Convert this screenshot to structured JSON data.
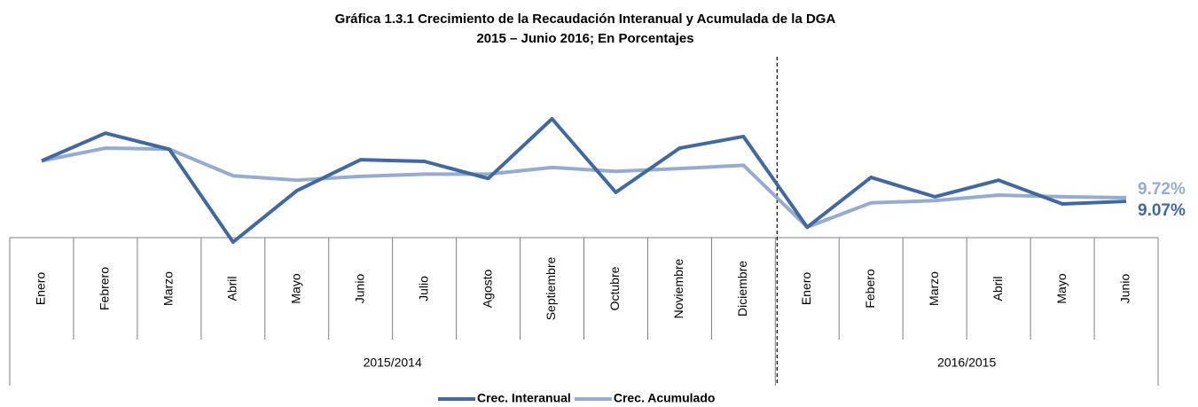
{
  "chart_data": {
    "type": "line",
    "title": "Gráfica 1.3.1 Crecimiento de la Recaudación Interanual y Acumulada de la DGA",
    "subtitle": "2015 – Junio 2016; En Porcentajes",
    "category_groups": [
      {
        "label": "2015/2014",
        "categories": [
          "Enero",
          "Febrero",
          "Marzo",
          "Abril",
          "Mayo",
          "Junio",
          "Julio",
          "Agosto",
          "Septiembre",
          "Octubre",
          "Noviembre",
          "Diciembre"
        ]
      },
      {
        "label": "2016/2015",
        "categories": [
          "Enero",
          "Febero",
          "Marzo",
          "Abril",
          "Mayo",
          "Junio"
        ]
      }
    ],
    "series": [
      {
        "name": "Crec. Interanual",
        "color": "#41699f",
        "values": [
          16.4,
          21.4,
          18.5,
          1.7,
          11.0,
          16.6,
          16.3,
          13.2,
          24.0,
          10.7,
          18.7,
          20.8,
          4.4,
          13.4,
          9.9,
          12.9,
          8.6,
          9.07
        ],
        "value_labels": [
          null,
          null,
          null,
          null,
          null,
          null,
          null,
          null,
          null,
          null,
          null,
          null,
          null,
          null,
          null,
          null,
          null,
          "9.07%"
        ]
      },
      {
        "name": "Crec. Acumulado",
        "color": "#95acd0",
        "values": [
          16.4,
          18.7,
          18.5,
          13.7,
          12.9,
          13.6,
          14.0,
          14.0,
          15.2,
          14.5,
          15.0,
          15.6,
          4.4,
          8.8,
          9.2,
          10.2,
          9.9,
          9.72
        ],
        "value_labels": [
          null,
          null,
          null,
          null,
          null,
          null,
          null,
          null,
          null,
          null,
          null,
          null,
          null,
          null,
          null,
          null,
          null,
          "9.72%"
        ]
      }
    ]
  }
}
